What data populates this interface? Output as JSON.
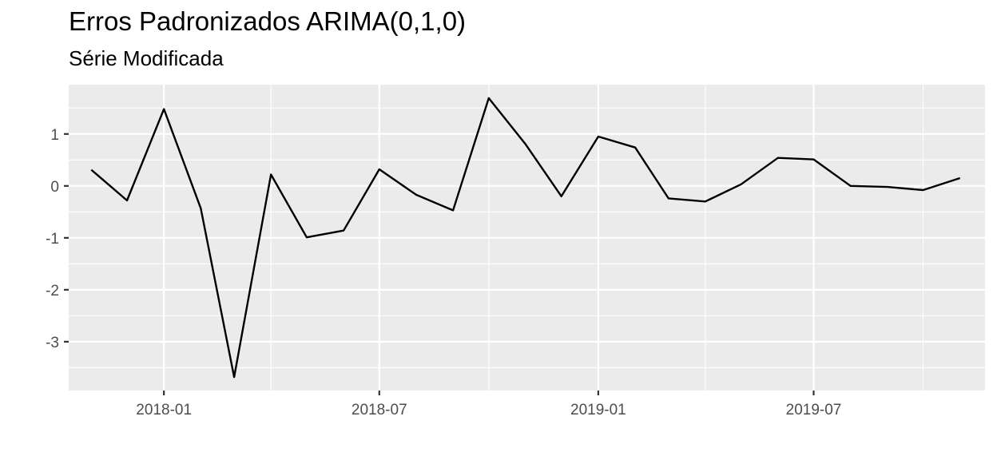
{
  "chart_data": {
    "type": "line",
    "title": "Erros Padronizados ARIMA(0,1,0)",
    "subtitle": "Série Modificada",
    "xlabel": "",
    "ylabel": "",
    "x": [
      "2017-11",
      "2017-12",
      "2018-01",
      "2018-02",
      "2018-03",
      "2018-04",
      "2018-05",
      "2018-06",
      "2018-07",
      "2018-08",
      "2018-09",
      "2018-10",
      "2018-11",
      "2018-12",
      "2019-01",
      "2019-02",
      "2019-03",
      "2019-04",
      "2019-05",
      "2019-06",
      "2019-07",
      "2019-08",
      "2019-09",
      "2019-10",
      "2019-11"
    ],
    "series": [
      {
        "values": [
          0.31,
          -0.28,
          1.48,
          -0.43,
          -3.68,
          0.22,
          -0.99,
          -0.86,
          0.32,
          -0.17,
          -0.47,
          1.69,
          0.8,
          -0.2,
          0.95,
          0.74,
          -0.24,
          -0.3,
          0.03,
          0.54,
          0.51,
          0.0,
          -0.02,
          -0.08,
          0.15
        ],
        "color": "#000000"
      }
    ],
    "x_ticks": [
      "2018-01",
      "2018-07",
      "2019-01",
      "2019-07"
    ],
    "y_ticks": [
      -3,
      -2,
      -1,
      0,
      1
    ],
    "y_tick_labels": [
      "-3",
      "-2",
      "-1",
      "0",
      "1"
    ],
    "xlim": [
      "2017-10-13",
      "2019-11-22"
    ],
    "ylim": [
      -3.94,
      1.95
    ],
    "grid": true,
    "panel_background": "#ebebeb",
    "grid_color": "#ffffff"
  }
}
